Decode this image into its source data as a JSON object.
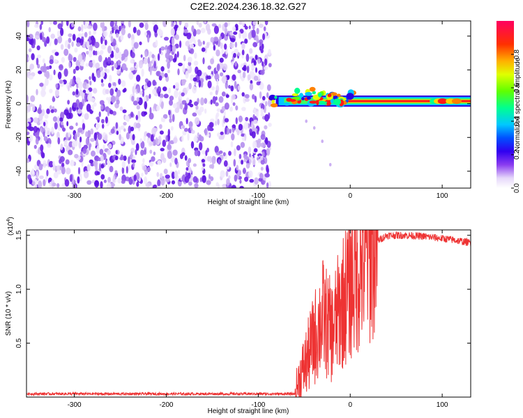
{
  "figure": {
    "title": "C2E2.2024.236.18.32.G27"
  },
  "chart_data": [
    {
      "type": "heatmap",
      "xlabel": "Height of straight line (km)",
      "ylabel": "Frequency (Hz)",
      "xlim": [
        -352,
        131
      ],
      "ylim": [
        -50,
        49
      ],
      "x_ticks": [
        -300,
        -200,
        -100,
        0,
        100
      ],
      "y_ticks": [
        -40,
        -20,
        0,
        20,
        40
      ],
      "colorbar": {
        "label": "Normalized spectral amplitude",
        "range": [
          0,
          1
        ],
        "ticks": [
          0.0,
          0.2,
          0.4,
          0.6,
          0.8
        ],
        "tick_labels": [
          "0.0",
          "0.2",
          "0.4",
          "0.6",
          "0.8"
        ],
        "colormap": [
          "#ffffff",
          "#d9c8f5",
          "#8a3cf0",
          "#5a00e0",
          "#0000ff",
          "#00c8ff",
          "#00ff80",
          "#9bff00",
          "#ffff00",
          "#ff8000",
          "#ff0000",
          "#ff0060"
        ]
      },
      "regions": [
        {
          "name": "noise",
          "x_range": [
            -352,
            -87
          ],
          "freq_range": [
            -50,
            49
          ],
          "amplitude": "low, scattered purple blobs"
        },
        {
          "name": "signal",
          "x_range": [
            -87,
            131
          ],
          "center_freq": 1.5,
          "amplitude_max": 0.95
        }
      ]
    },
    {
      "type": "line",
      "xlabel": "Height of straight line (km)",
      "ylabel": "SNR (10 * v/v)",
      "y_scale_label": "(x10",
      "y_scale_exponent": "4",
      "xlim": [
        -352,
        131
      ],
      "ylim": [
        0,
        15500
      ],
      "x_ticks": [
        -300,
        -200,
        -100,
        0,
        100
      ],
      "y_ticks": [
        5000,
        10000,
        15000
      ],
      "y_tick_labels": [
        "0.5",
        "1.0",
        "1.5"
      ],
      "series": [
        {
          "color": "#ee3333",
          "anchors_x": [
            -352,
            -60,
            -55,
            -48,
            -40,
            -30,
            -20,
            -12,
            -5,
            0,
            10,
            20,
            30,
            40,
            60,
            80,
            100,
            110,
            131
          ],
          "anchors_y": [
            300,
            300,
            1800,
            3200,
            5200,
            7500,
            6000,
            8000,
            9500,
            10500,
            12000,
            13500,
            14500,
            15000,
            15000,
            14900,
            14700,
            14600,
            14300
          ]
        }
      ]
    }
  ]
}
